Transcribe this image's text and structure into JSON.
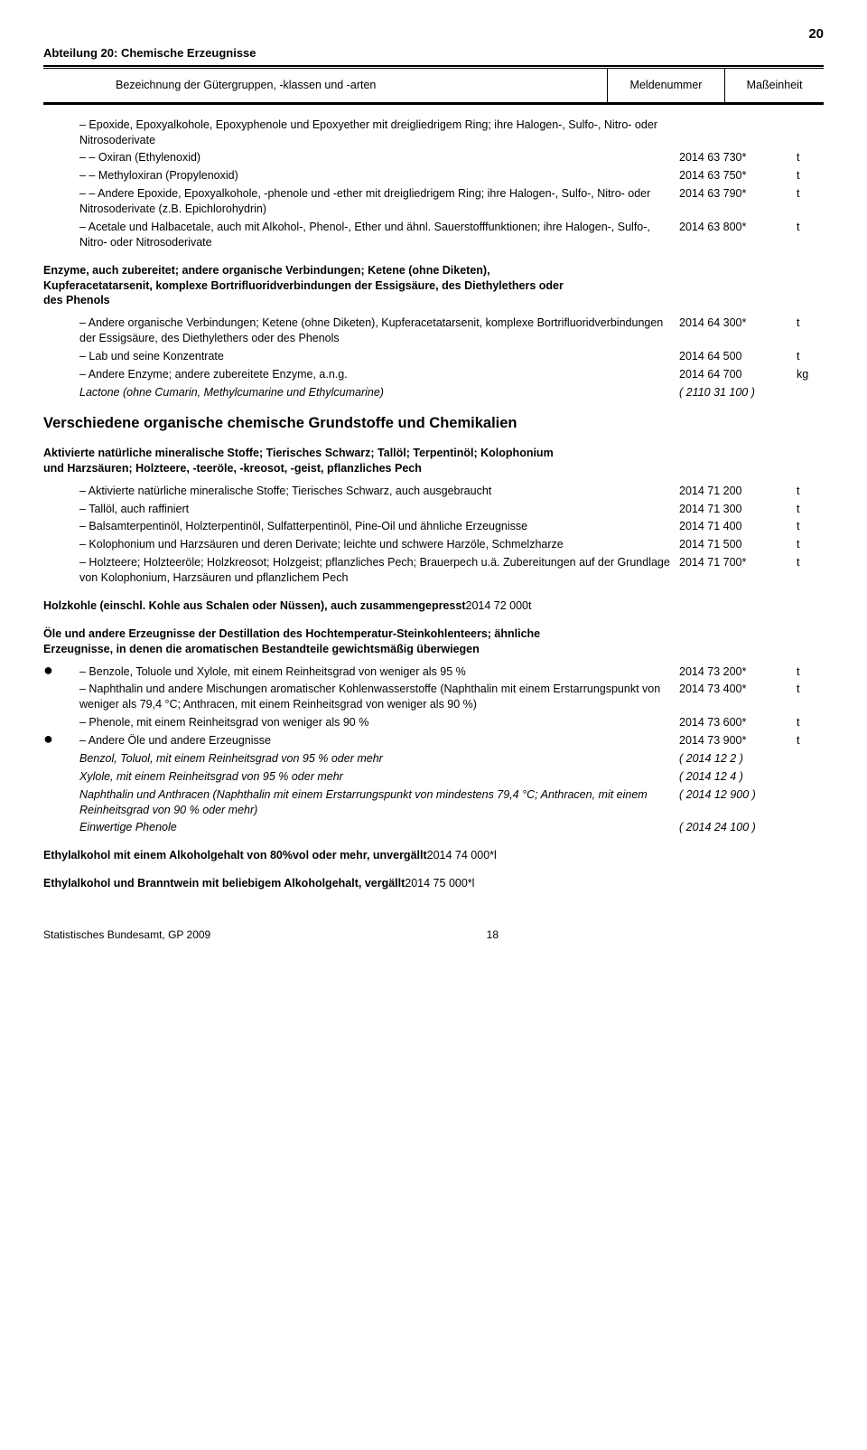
{
  "page_number": "20",
  "section_title": "Abteilung 20: Chemische Erzeugnisse",
  "header": {
    "col_main": "Bezeichnung der Gütergruppen, -klassen und -arten",
    "col_mid": "Meldenummer",
    "col_right": "Maßeinheit"
  },
  "intro_block": "– Epoxide, Epoxyalkohole, Epoxyphenole und Epoxyether mit dreigliedrigem Ring; ihre Halogen-, Sulfo-, Nitro- oder Nitrosoderivate",
  "r_oxiran": {
    "text": "– – Oxiran (Ethylenoxid)",
    "num": "2014 63 730*",
    "unit": "t"
  },
  "r_methylox": {
    "text": "– – Methyloxiran (Propylenoxid)",
    "num": "2014 63 750*",
    "unit": "t"
  },
  "r_andere_ep": {
    "text": "– – Andere Epoxide, Epoxyalkohole, -phenole und -ether mit dreigliedrigem Ring; ihre Halogen-, Sulfo-, Nitro- oder Nitrosoderivate (z.B. Epichlorohydrin)",
    "num": "2014 63 790*",
    "unit": "t"
  },
  "r_acetale": {
    "text": "– Acetale und Halbacetale, auch mit Alkohol-, Phenol-, Ether und ähnl. Sauerstofffunktionen; ihre Halogen-, Sulfo-, Nitro- oder Nitrosoderivate",
    "num": "2014 63 800*",
    "unit": "t"
  },
  "g_enzyme": "Enzyme, auch zubereitet; andere organische Verbindungen; Ketene (ohne Diketen), Kupferacetatarsenit, komplexe Bortrifluoridverbindungen der Essigsäure, des Diethylethers oder des Phenols",
  "r_andere_org": {
    "text": "– Andere organische Verbindungen; Ketene (ohne Diketen), Kupferacetatarsenit, komplexe Bortrifluoridverbindungen der Essigsäure, des Diethylethers oder des Phenols",
    "num": "2014 64 300*",
    "unit": "t"
  },
  "r_lab": {
    "text": "– Lab und seine Konzentrate",
    "num": "2014 64 500",
    "unit": "t"
  },
  "r_andere_enz": {
    "text": "– Andere Enzyme; andere zubereitete Enzyme, a.n.g.",
    "num": "2014 64 700",
    "unit": "kg"
  },
  "r_lactone": {
    "text": "Lactone (ohne Cumarin, Methylcumarine und Ethylcumarine)",
    "num": "( 2110 31 100 )"
  },
  "h2_verschiedene": "Verschiedene organische chemische Grundstoffe und Chemikalien",
  "g_aktivierte": "Aktivierte natürliche mineralische Stoffe; Tierisches Schwarz; Tallöl; Terpentinöl; Kolophonium und Harzsäuren; Holzteere, -teeröle, -kreosot, -geist, pflanzliches Pech",
  "r_aktiv_min": {
    "text": "– Aktivierte natürliche mineralische Stoffe; Tierisches Schwarz, auch ausgebraucht",
    "num": "2014 71 200",
    "unit": "t"
  },
  "r_talloel": {
    "text": "– Tallöl, auch raffiniert",
    "num": "2014 71 300",
    "unit": "t"
  },
  "r_balsam": {
    "text": "– Balsamterpentinöl, Holzterpentinöl, Sulfatterpentinöl, Pine-Oil und ähnliche Erzeugnisse",
    "num": "2014 71 400",
    "unit": "t"
  },
  "r_koloph": {
    "text": "– Kolophonium und Harzsäuren und deren Derivate; leichte und schwere Harzöle, Schmelzharze",
    "num": "2014 71 500",
    "unit": "t"
  },
  "r_holzteere": {
    "text": "– Holzteere; Holzteeröle; Holzkreosot; Holzgeist; pflanzliches Pech; Brauerpech u.ä. Zubereitungen auf der Grundlage von Kolophonium, Harzsäuren und pflanzlichem Pech",
    "num": "2014 71 700*",
    "unit": "t"
  },
  "g_holzkohle": {
    "text": "Holzkohle (einschl. Kohle aus Schalen oder Nüssen), auch zusammengepresst",
    "num": "2014 72 000",
    "unit": "t"
  },
  "g_oele": "Öle und andere Erzeugnisse der Destillation des Hochtemperatur-Steinkohlenteers; ähnliche Erzeugnisse, in denen die aromatischen Bestandteile gewichtsmäßig überwiegen",
  "r_benzole": {
    "text": "– Benzole, Toluole und Xylole, mit einem Reinheitsgrad von weniger als 95 %",
    "num": "2014 73 200*",
    "unit": "t"
  },
  "r_naphth": {
    "text": "– Naphthalin und andere Mischungen aromatischer Kohlenwasserstoffe (Naphthalin mit einem Erstarrungspunkt von weniger als 79,4 °C; Anthracen,\nmit einem Reinheitsgrad von weniger als 90 %)",
    "num": "2014 73 400*",
    "unit": "t"
  },
  "r_phenole": {
    "text": "– Phenole, mit einem Reinheitsgrad von weniger als 90 %",
    "num": "2014 73 600*",
    "unit": "t"
  },
  "r_andere_oele": {
    "text": "– Andere Öle und andere Erzeugnisse",
    "num": "2014 73 900*",
    "unit": "t"
  },
  "r_it_benzol": {
    "text": "Benzol, Toluol, mit einem Reinheitsgrad von 95 % oder mehr",
    "num": "( 2014 12 2 )"
  },
  "r_it_xylole": {
    "text": "Xylole, mit einem Reinheitsgrad von 95 % oder mehr",
    "num": "( 2014 12 4 )"
  },
  "r_it_naphth": {
    "text": "Naphthalin und Anthracen (Naphthalin mit einem Erstarrungspunkt von mindestens 79,4 °C; Anthracen, mit einem Reinheitsgrad von 90 % oder mehr)",
    "num": "( 2014 12 900 )"
  },
  "r_it_einw": {
    "text": "Einwertige Phenole",
    "num": "( 2014 24 100 )"
  },
  "g_ethyl80": {
    "text": "Ethylalkohol mit einem Alkoholgehalt von 80%vol oder mehr, unvergällt",
    "num": "2014 74 000*",
    "unit": "l"
  },
  "g_ethyl_brannt": {
    "text": "Ethylalkohol und Branntwein mit beliebigem Alkoholgehalt, vergällt",
    "num": "2014 75 000*",
    "unit": "l"
  },
  "footer": {
    "left": "Statistisches Bundesamt, GP 2009",
    "pg": "18"
  }
}
